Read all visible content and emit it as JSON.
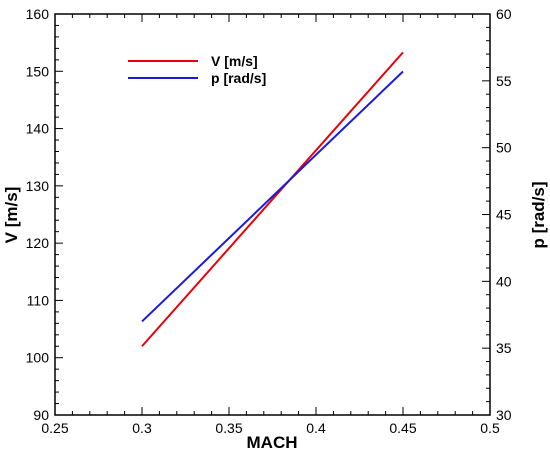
{
  "chart_data": {
    "type": "line",
    "xlabel": "MACH",
    "ylabel_left": "V [m/s]",
    "ylabel_right": "p [rad/s]",
    "xlim": [
      0.25,
      0.5
    ],
    "ylim_left": [
      90,
      160
    ],
    "ylim_right": [
      30,
      60
    ],
    "x_ticks": [
      "0.25",
      "0.3",
      "0.35",
      "0.4",
      "0.45",
      "0.5"
    ],
    "y_left_ticks": [
      "90",
      "100",
      "110",
      "120",
      "130",
      "140",
      "150",
      "160"
    ],
    "y_right_ticks": [
      "30",
      "35",
      "40",
      "45",
      "50",
      "55",
      "60"
    ],
    "grid": false,
    "legend_position": "top-left",
    "series": [
      {
        "name": "V [m/s]",
        "axis": "left",
        "color": "#e8000b",
        "x": [
          0.3,
          0.45
        ],
        "y": [
          102.0,
          153.3
        ]
      },
      {
        "name": "p [rad/s]",
        "axis": "right",
        "color": "#1a1adc",
        "x": [
          0.3,
          0.45
        ],
        "y": [
          37.0,
          55.7
        ]
      }
    ]
  }
}
